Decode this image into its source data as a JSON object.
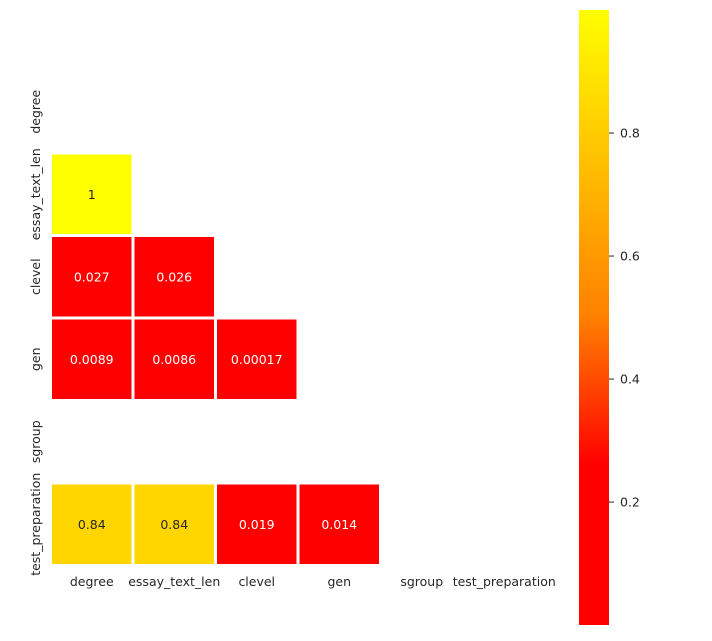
{
  "chart_data": {
    "type": "heatmap",
    "title": "",
    "xlabel": "",
    "ylabel": "",
    "x_categories": [
      "degree",
      "essay_text_len",
      "clevel",
      "gen",
      "sgroup",
      "test_preparation"
    ],
    "y_categories": [
      "degree",
      "essay_text_len",
      "clevel",
      "gen",
      "sgroup",
      "test_preparation"
    ],
    "mask": "upper-triangle-including-diagonal",
    "cells": [
      {
        "row": "essay_text_len",
        "col": "degree",
        "value": 1.0,
        "label": "1"
      },
      {
        "row": "clevel",
        "col": "degree",
        "value": 0.027,
        "label": "0.027"
      },
      {
        "row": "clevel",
        "col": "essay_text_len",
        "value": 0.026,
        "label": "0.026"
      },
      {
        "row": "gen",
        "col": "degree",
        "value": 0.0089,
        "label": "0.0089"
      },
      {
        "row": "gen",
        "col": "essay_text_len",
        "value": 0.0086,
        "label": "0.0086"
      },
      {
        "row": "gen",
        "col": "clevel",
        "value": 0.00017,
        "label": "0.00017"
      },
      {
        "row": "test_preparation",
        "col": "degree",
        "value": 0.84,
        "label": "0.84"
      },
      {
        "row": "test_preparation",
        "col": "essay_text_len",
        "value": 0.84,
        "label": "0.84"
      },
      {
        "row": "test_preparation",
        "col": "clevel",
        "value": 0.019,
        "label": "0.019"
      },
      {
        "row": "test_preparation",
        "col": "gen",
        "value": 0.014,
        "label": "0.014"
      }
    ],
    "colormap": "autumn",
    "colorbar": {
      "range": [
        0.00017,
        1.0
      ],
      "ticks": [
        0.2,
        0.4,
        0.6,
        0.8
      ],
      "tick_labels": [
        "0.2",
        "0.4",
        "0.6",
        "0.8"
      ],
      "stops": [
        {
          "value": 0.0,
          "color": "#ff0000"
        },
        {
          "value": 0.26,
          "color": "#ff0000"
        },
        {
          "value": 0.5,
          "color": "#ff8000"
        },
        {
          "value": 1.0,
          "color": "#ffff00"
        }
      ]
    },
    "annotation_colors": {
      "dark": "#262626",
      "light": "#ffffff"
    }
  }
}
